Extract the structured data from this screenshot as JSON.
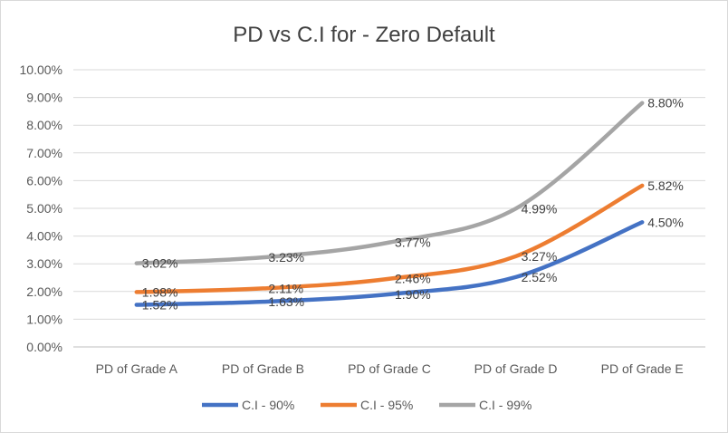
{
  "chart_data": {
    "type": "line",
    "title": "PD vs C.I for - Zero Default",
    "xlabel": "",
    "ylabel": "",
    "categories": [
      "PD of Grade A",
      "PD of Grade B",
      "PD of Grade C",
      "PD of Grade D",
      "PD of Grade E"
    ],
    "ylim": [
      0,
      0.1
    ],
    "yticks": [
      "0.00%",
      "1.00%",
      "2.00%",
      "3.00%",
      "4.00%",
      "5.00%",
      "6.00%",
      "7.00%",
      "8.00%",
      "9.00%",
      "10.00%"
    ],
    "grid": true,
    "legend": "bottom",
    "series": [
      {
        "name": "C.I - 90%",
        "color": "#4472c4",
        "values": [
          0.0152,
          0.0163,
          0.019,
          0.0252,
          0.045
        ],
        "labels": [
          "1.52%",
          "1.63%",
          "1.90%",
          "2.52%",
          "4.50%"
        ]
      },
      {
        "name": "C.I - 95%",
        "color": "#ed7d31",
        "values": [
          0.0198,
          0.0211,
          0.0246,
          0.0327,
          0.0582
        ],
        "labels": [
          "1.98%",
          "2.11%",
          "2.46%",
          "3.27%",
          "5.82%"
        ]
      },
      {
        "name": "C.I - 99%",
        "color": "#a5a5a5",
        "values": [
          0.0302,
          0.0323,
          0.0377,
          0.0499,
          0.088
        ],
        "labels": [
          "3.02%",
          "3.23%",
          "3.77%",
          "4.99%",
          "8.80%"
        ]
      }
    ]
  }
}
